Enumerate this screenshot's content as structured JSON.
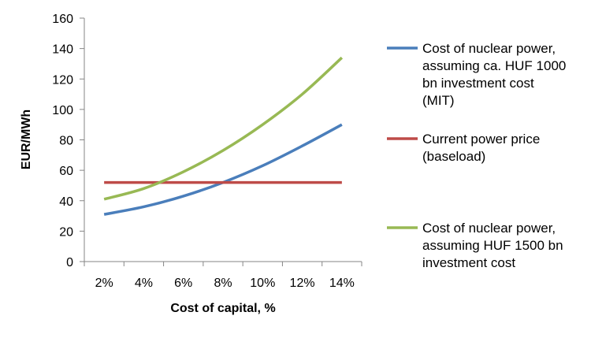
{
  "chart_data": {
    "type": "line",
    "title": "",
    "xlabel": "Cost of capital, %",
    "ylabel": "EUR/MWh",
    "categories": [
      "2%",
      "4%",
      "6%",
      "8%",
      "10%",
      "12%",
      "14%"
    ],
    "x": [
      2,
      4,
      6,
      8,
      10,
      12,
      14
    ],
    "ylim": [
      0,
      160
    ],
    "y_ticks": [
      "0",
      "20",
      "40",
      "60",
      "80",
      "100",
      "120",
      "140",
      "160"
    ],
    "grid": false,
    "legend_position": "right",
    "series": [
      {
        "name": "Cost of nuclear power, assuming ca. HUF 1000 bn investment cost (MIT)",
        "name_lines": [
          "Cost of nuclear power,",
          "assuming ca. HUF 1000",
          "bn investment cost",
          "(MIT)"
        ],
        "color": "#4a7ebb",
        "values": [
          31,
          36,
          43,
          52,
          63,
          76,
          90
        ]
      },
      {
        "name": "Current power price (baseload)",
        "name_lines": [
          "Current power price",
          "(baseload)"
        ],
        "color": "#be4b48",
        "values": [
          52,
          52,
          52,
          52,
          52,
          52,
          52
        ]
      },
      {
        "name": "Cost of nuclear power, assuming HUF 1500 bn investment cost",
        "name_lines": [
          "Cost of nuclear power,",
          "assuming HUF 1500 bn",
          "investment cost"
        ],
        "color": "#98b954",
        "values": [
          41,
          48,
          59,
          73,
          90,
          110,
          134
        ]
      }
    ]
  }
}
